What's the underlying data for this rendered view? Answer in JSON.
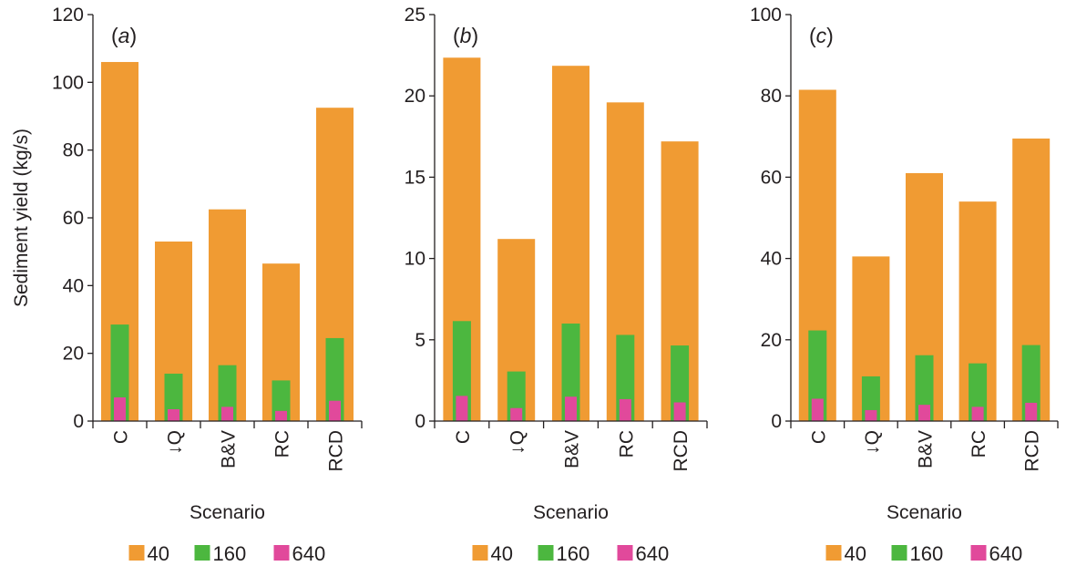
{
  "colors": {
    "s40": "#f09b33",
    "s160": "#4cb73f",
    "s640": "#e1499b",
    "axis": "#231f20"
  },
  "chart_data": [
    {
      "type": "bar",
      "panel_label": "a",
      "ylabel": "Sediment yield (kg/s)",
      "xlabel": "Scenario",
      "ylim": [
        0,
        120
      ],
      "yticks": [
        "0",
        "20",
        "40",
        "60",
        "80",
        "100",
        "120"
      ],
      "categories": [
        "C",
        "↓Q",
        "B&V",
        "RC",
        "RCD"
      ],
      "series": [
        {
          "name": "40",
          "values": [
            106,
            53,
            62.5,
            46.5,
            92.5
          ]
        },
        {
          "name": "160",
          "values": [
            28.5,
            14,
            16.5,
            12,
            24.5
          ]
        },
        {
          "name": "640",
          "values": [
            7,
            3.5,
            4.2,
            3,
            6
          ]
        }
      ],
      "legend": [
        "40",
        "160",
        "640"
      ]
    },
    {
      "type": "bar",
      "panel_label": "b",
      "ylabel": "",
      "xlabel": "Scenario",
      "ylim": [
        0,
        25
      ],
      "yticks": [
        "0",
        "5",
        "10",
        "15",
        "20",
        "25"
      ],
      "categories": [
        "C",
        "↓Q",
        "B&V",
        "RC",
        "RCD"
      ],
      "series": [
        {
          "name": "40",
          "values": [
            22.35,
            11.2,
            21.85,
            19.6,
            17.2
          ]
        },
        {
          "name": "160",
          "values": [
            6.15,
            3.05,
            6.0,
            5.3,
            4.65
          ]
        },
        {
          "name": "640",
          "values": [
            1.55,
            0.8,
            1.5,
            1.35,
            1.15
          ]
        }
      ],
      "legend": [
        "40",
        "160",
        "640"
      ]
    },
    {
      "type": "bar",
      "panel_label": "c",
      "ylabel": "",
      "xlabel": "Scenario",
      "ylim": [
        0,
        100
      ],
      "yticks": [
        "0",
        "20",
        "40",
        "60",
        "80",
        "100"
      ],
      "categories": [
        "C",
        "↓Q",
        "B&V",
        "RC",
        "RCD"
      ],
      "series": [
        {
          "name": "40",
          "values": [
            81.5,
            40.5,
            61,
            54,
            69.5
          ]
        },
        {
          "name": "160",
          "values": [
            22.3,
            11,
            16.2,
            14.2,
            18.7
          ]
        },
        {
          "name": "640",
          "values": [
            5.5,
            2.7,
            4,
            3.5,
            4.5
          ]
        }
      ],
      "legend": [
        "40",
        "160",
        "640"
      ]
    }
  ]
}
